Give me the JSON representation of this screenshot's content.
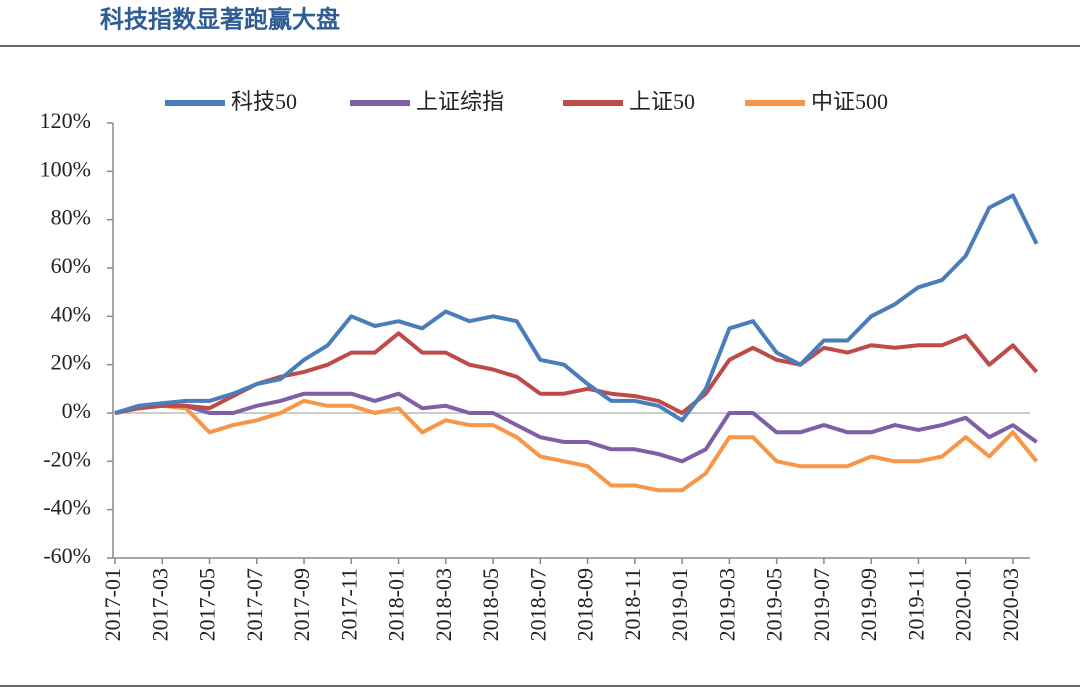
{
  "chart_data": {
    "type": "line",
    "title": "科技指数显著跑赢大盘",
    "categories": [
      "2017-01",
      null,
      "2017-03",
      null,
      "2017-05",
      null,
      "2017-07",
      null,
      "2017-09",
      null,
      "2017-11",
      null,
      "2018-01",
      null,
      "2018-03",
      null,
      "2018-05",
      null,
      "2018-07",
      null,
      "2018-09",
      null,
      "2018-11",
      null,
      "2019-01",
      null,
      "2019-03",
      null,
      "2019-05",
      null,
      "2019-07",
      null,
      "2019-09",
      null,
      "2019-11",
      null,
      "2020-01",
      null,
      "2020-03",
      null
    ],
    "series": [
      {
        "name": "科技50",
        "color": "#4a7ebb",
        "values": [
          0,
          3,
          4,
          5,
          5,
          8,
          12,
          14,
          22,
          28,
          40,
          36,
          38,
          35,
          42,
          38,
          40,
          38,
          22,
          20,
          12,
          5,
          5,
          3,
          -3,
          10,
          35,
          38,
          25,
          20,
          30,
          30,
          40,
          45,
          52,
          55,
          65,
          85,
          90,
          70
        ]
      },
      {
        "name": "上证综指",
        "color": "#7f5fa6",
        "values": [
          0,
          2,
          3,
          3,
          0,
          0,
          3,
          5,
          8,
          8,
          8,
          5,
          8,
          2,
          3,
          0,
          0,
          -5,
          -10,
          -12,
          -12,
          -15,
          -15,
          -17,
          -20,
          -15,
          0,
          0,
          -8,
          -8,
          -5,
          -8,
          -8,
          -5,
          -7,
          -5,
          -2,
          -10,
          -5,
          -12
        ]
      },
      {
        "name": "上证50",
        "color": "#be4b48",
        "values": [
          0,
          2,
          3,
          3,
          2,
          7,
          12,
          15,
          17,
          20,
          25,
          25,
          33,
          25,
          25,
          20,
          18,
          15,
          8,
          8,
          10,
          8,
          7,
          5,
          0,
          8,
          22,
          27,
          22,
          20,
          27,
          25,
          28,
          27,
          28,
          28,
          32,
          20,
          28,
          17
        ]
      },
      {
        "name": "中证500",
        "color": "#f79646",
        "values": [
          0,
          2,
          3,
          2,
          -8,
          -5,
          -3,
          0,
          5,
          3,
          3,
          0,
          2,
          -8,
          -3,
          -5,
          -5,
          -10,
          -18,
          -20,
          -22,
          -30,
          -30,
          -32,
          -32,
          -25,
          -10,
          -10,
          -20,
          -22,
          -22,
          -22,
          -18,
          -20,
          -20,
          -18,
          -10,
          -18,
          -8,
          -20
        ]
      }
    ],
    "ylim": [
      -60,
      120
    ],
    "yticks": [
      {
        "value": -60,
        "label": "-60%"
      },
      {
        "value": -40,
        "label": "-40%"
      },
      {
        "value": -20,
        "label": "-20%"
      },
      {
        "value": 0,
        "label": "0%"
      },
      {
        "value": 20,
        "label": "20%"
      },
      {
        "value": 40,
        "label": "40%"
      },
      {
        "value": 60,
        "label": "60%"
      },
      {
        "value": 80,
        "label": "80%"
      },
      {
        "value": 100,
        "label": "100%"
      },
      {
        "value": 120,
        "label": "120%"
      }
    ],
    "legend": "top"
  }
}
